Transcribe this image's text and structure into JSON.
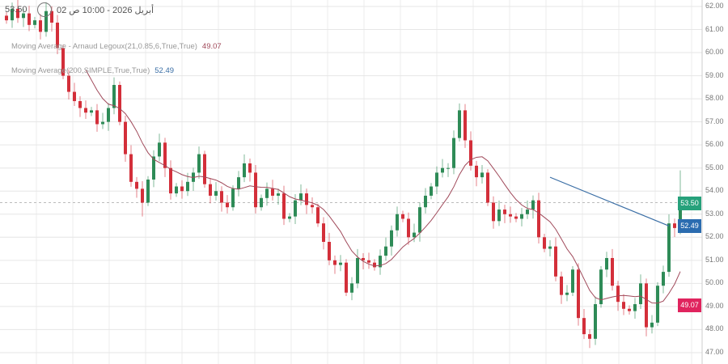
{
  "header": {
    "last_price": "53.50",
    "datetime": "أبريل 2026 - 10:00 ص 02",
    "clock_icon": "clock-icon"
  },
  "legend": [
    {
      "label": "Moving Average - Arnaud Legoux(21,0.85,6,True,True)",
      "value": "49.07",
      "color": "#a0495a"
    },
    {
      "label": "Moving Average(200,SIMPLE,True,True)",
      "value": "52.49",
      "color": "#3a6ea5"
    }
  ],
  "chart_data": {
    "type": "candlestick",
    "ylim": [
      47,
      62
    ],
    "y_ticks": [
      "62.00",
      "61.00",
      "60.00",
      "59.00",
      "58.00",
      "57.00",
      "56.00",
      "55.00",
      "54.00",
      "53.00",
      "52.00",
      "51.00",
      "50.00",
      "49.00",
      "48.00",
      "47.00"
    ],
    "grid": true,
    "up_color": "#2e8b57",
    "down_color": "#d32f3a",
    "closes": [
      61.4,
      61.9,
      61.5,
      61.7,
      61.2,
      61.4,
      60.9,
      61.8,
      61.3,
      60.2,
      59.0,
      58.3,
      57.9,
      57.6,
      57.4,
      57.5,
      56.9,
      57.0,
      57.6,
      58.6,
      57.0,
      55.6,
      54.4,
      54.1,
      53.5,
      54.5,
      55.5,
      56.1,
      55.0,
      53.9,
      54.2,
      54.0,
      54.4,
      54.8,
      55.6,
      54.3,
      53.8,
      54.0,
      53.5,
      53.3,
      54.1,
      54.6,
      55.2,
      54.8,
      53.3,
      53.7,
      54.1,
      53.8,
      53.9,
      52.8,
      52.9,
      53.6,
      53.9,
      53.4,
      53.3,
      52.6,
      51.8,
      51.0,
      50.8,
      50.9,
      49.6,
      50.0,
      51.1,
      51.0,
      50.9,
      50.7,
      51.2,
      51.6,
      52.3,
      53.0,
      52.8,
      52.0,
      52.2,
      53.3,
      53.8,
      54.2,
      54.8,
      55.0,
      55.0,
      56.3,
      57.5,
      56.2,
      55.1,
      54.6,
      54.8,
      53.5,
      52.7,
      53.2,
      53.0,
      52.9,
      52.8,
      53.0,
      53.2,
      53.6,
      52.0,
      51.5,
      51.6,
      50.3,
      49.5,
      49.6,
      50.6,
      48.5,
      47.8,
      47.6,
      49.1,
      50.6,
      51.1,
      49.9,
      49.2,
      48.9,
      48.8,
      49.1,
      50.0,
      48.1,
      48.3,
      49.9,
      50.5,
      52.6,
      52.4,
      53.5
    ],
    "notable_highs": {
      "80": 57.8,
      "119": 54.9
    },
    "notable_lows": {
      "103": 47.2,
      "24": 52.9
    },
    "sma200_segment": {
      "start": 54.6,
      "end": 52.49
    },
    "last_price_line": 53.5,
    "price_tags": [
      {
        "value": "53.50",
        "color": "#26a17b"
      },
      {
        "value": "52.49",
        "color": "#2b6cb0"
      },
      {
        "value": "49.07",
        "color": "#e0245e"
      }
    ]
  }
}
